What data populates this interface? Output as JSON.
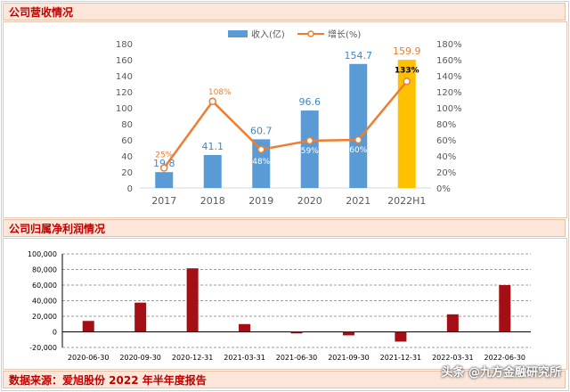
{
  "section1": {
    "title": "公司营收情况"
  },
  "section2": {
    "title": "公司归属净利润情况"
  },
  "footer": {
    "source": "数据来源：爱旭股份 2022 年半年度报告"
  },
  "watermark": "头条 @九方金融研究所",
  "colors": {
    "header_text": "#c00000",
    "revenue_bar": "#5b9bd5",
    "revenue_highlight_bar": "#ffc000",
    "growth_line": "#ed7d31",
    "growth_marker": "#ffffff",
    "profit_bar": "#a30f14",
    "chart1_bg": "#ffffff",
    "label_blue": "#3f87c8",
    "label_orange": "#ed7d31"
  },
  "chart_data": [
    {
      "type": "bar",
      "categories": [
        "2017",
        "2018",
        "2019",
        "2020",
        "2021",
        "2022H1"
      ],
      "series": [
        {
          "name": "收入(亿)",
          "values": [
            19.8,
            41.1,
            60.7,
            96.6,
            154.7,
            159.9
          ],
          "labels": [
            "19.8",
            "41.1",
            "60.7",
            "96.6",
            "154.7",
            "159.9"
          ]
        },
        {
          "name": "增长(%)",
          "type": "line",
          "axis": "right",
          "values": [
            25,
            108,
            48,
            59,
            60,
            133
          ],
          "labels": [
            "25%",
            "108%",
            "48%",
            "59%",
            "60%",
            "133%"
          ]
        }
      ],
      "ylim": [
        0,
        180
      ],
      "y_ticks": [
        "0",
        "20",
        "40",
        "60",
        "80",
        "100",
        "120",
        "140",
        "160",
        "180"
      ],
      "y2lim": [
        0,
        180
      ],
      "y2_ticks": [
        "0%",
        "20%",
        "40%",
        "60%",
        "80%",
        "100%",
        "120%",
        "140%",
        "160%",
        "180%"
      ],
      "legend_position": "top-center",
      "grid": false
    },
    {
      "type": "bar",
      "categories": [
        "2020-06-30",
        "2020-09-30",
        "2020-12-31",
        "2021-03-31",
        "2021-06-30",
        "2021-09-30",
        "2021-12-31",
        "2022-03-31",
        "2022-06-30"
      ],
      "series": [
        {
          "values": [
            14000,
            37500,
            81500,
            10000,
            -2000,
            -4500,
            -12500,
            22500,
            60000
          ]
        }
      ],
      "ylim": [
        -20000,
        100000
      ],
      "y_ticks": [
        "-20,000",
        "0",
        "20,000",
        "40,000",
        "60,000",
        "80,000",
        "100,000"
      ],
      "grid": true
    }
  ]
}
